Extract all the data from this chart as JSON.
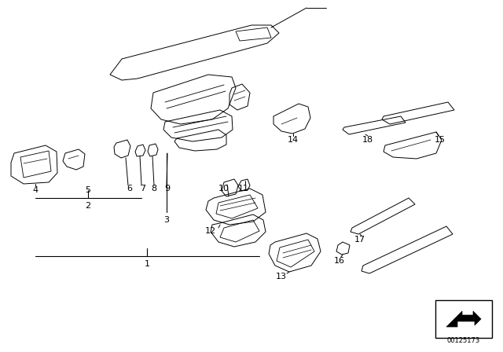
{
  "bg_color": "#ffffff",
  "fig_width": 6.4,
  "fig_height": 4.48,
  "dpi": 100,
  "doc_number": "00125173",
  "line_color": "#000000",
  "lw": 0.7
}
